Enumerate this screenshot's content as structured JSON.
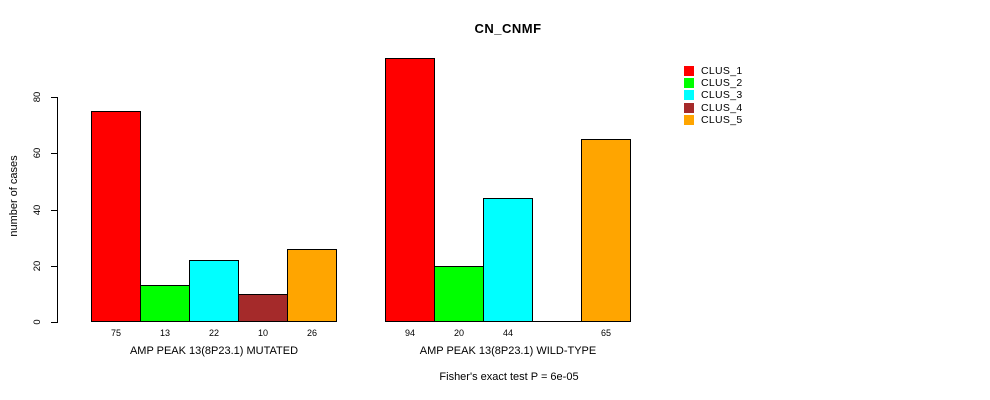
{
  "chart_data": {
    "type": "bar",
    "title": "CN_CNMF",
    "ylabel": "number of cases",
    "xlabel": "",
    "yticks": [
      0,
      20,
      40,
      60,
      80
    ],
    "ylim": [
      0,
      94
    ],
    "grid": false,
    "legend_position": "right",
    "clusters": [
      {
        "name": "CLUS_1",
        "color": "#FF0000"
      },
      {
        "name": "CLUS_2",
        "color": "#00FF00"
      },
      {
        "name": "CLUS_3",
        "color": "#00FFFF"
      },
      {
        "name": "CLUS_4",
        "color": "#A52A2A"
      },
      {
        "name": "CLUS_5",
        "color": "#FFA500"
      }
    ],
    "groups": [
      {
        "label": "AMP PEAK 13(8P23.1) MUTATED",
        "values": [
          75,
          13,
          22,
          10,
          26
        ],
        "bar_labels": [
          "75",
          "13",
          "22",
          "10",
          "26"
        ]
      },
      {
        "label": "AMP PEAK 13(8P23.1) WILD-TYPE",
        "values": [
          94,
          20,
          44,
          0,
          65
        ],
        "bar_labels": [
          "94",
          "20",
          "44",
          "",
          "65"
        ]
      }
    ],
    "annotation": "Fisher's exact test P = 6e-05"
  }
}
